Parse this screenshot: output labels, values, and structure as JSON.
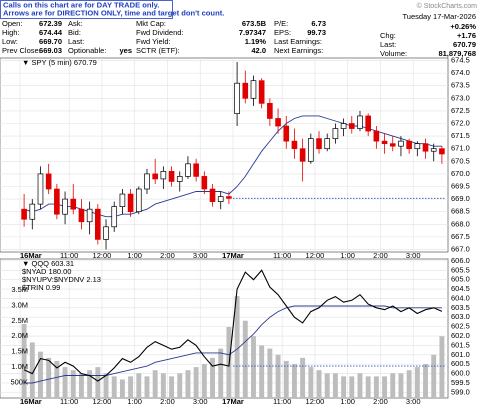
{
  "notice": [
    "Calls on this chart are for DAY TRADE only.",
    "Arrows are for DIRECTION ONLY, time and target don't count."
  ],
  "watermark": "© StockCharts.com",
  "quote": {
    "rows": [
      [
        {
          "label": "Open:",
          "value": "672.39"
        },
        {
          "label": "Ask:"
        },
        {
          "label": "Mkt Cap:",
          "value": "673.5B"
        },
        {
          "label": "P/E:",
          "value": "6.73"
        }
      ],
      [
        {
          "label": "High:",
          "value": "674.44"
        },
        {
          "label": "Bid:"
        },
        {
          "label": "Fwd Dividend:",
          "value": "7.97347"
        },
        {
          "label": "EPS:",
          "value": "99.73"
        }
      ],
      [
        {
          "label": "Low:",
          "value": "669.70"
        },
        {
          "label": "Last:"
        },
        {
          "label": "Fwd Yield:",
          "value": "1.19%"
        },
        {
          "label": "Last Earnings:"
        }
      ],
      [
        {
          "label": "Prev Close:",
          "value": "669.03"
        },
        {
          "label": "Optionable:",
          "value": "yes"
        },
        {
          "label": "SCTR (ETF):",
          "value": "42.0"
        },
        {
          "label": "Next Earnings:"
        }
      ]
    ],
    "date": "Tuesday 17-Mar-2026",
    "change_pct": "+0.26%",
    "change_color": "#1a9a1a",
    "stats": [
      {
        "label": "Chg:",
        "value": "+1.76"
      },
      {
        "label": "Last:",
        "value": "670.79"
      },
      {
        "label": "Volume:",
        "value": "81,879,768"
      }
    ]
  },
  "chart_data": [
    {
      "type": "candlestick",
      "legend": "▼ SPY (5 min) 670.79",
      "xlim": [
        0,
        52
      ],
      "xticks": [
        {
          "value": 0,
          "label": "16Mar"
        },
        {
          "value": 6,
          "label": "11:00"
        },
        {
          "value": 10,
          "label": "12:00"
        },
        {
          "value": 14,
          "label": "1:00"
        },
        {
          "value": 18,
          "label": "2:00"
        },
        {
          "value": 22,
          "label": "3:00"
        },
        {
          "value": 26,
          "label": "17Mar"
        },
        {
          "value": 32,
          "label": "11:00"
        },
        {
          "value": 36,
          "label": "12:00"
        },
        {
          "value": 40,
          "label": "1:00"
        },
        {
          "value": 44,
          "label": "2:00"
        },
        {
          "value": 48,
          "label": "3:00"
        }
      ],
      "ylim": [
        666.9,
        674.6
      ],
      "yticks": [
        674.5,
        {
          "value": 674,
          "label": "674.0"
        },
        673.5,
        {
          "value": 673,
          "label": "673.0"
        },
        672.5,
        {
          "value": 672,
          "label": "672.0"
        },
        671.5,
        {
          "value": 671,
          "label": "671.0"
        },
        670.5,
        {
          "value": 670,
          "label": "670.0"
        },
        669.5,
        {
          "value": 669,
          "label": "669.0"
        },
        668.5,
        {
          "value": 668,
          "label": "668.0"
        },
        667.5,
        {
          "value": 667,
          "label": "667.0"
        }
      ],
      "grid": true,
      "up_color": "#000000",
      "down_color": "#e00000",
      "ma_color": "#2b3990",
      "prev_color": "#3050c0",
      "open": [
        668.6,
        668.2,
        668.8,
        670.0,
        669.4,
        668.4,
        669.0,
        668.6,
        668.1,
        668.6,
        667.4,
        667.9,
        668.7,
        669.2,
        668.5,
        669.4,
        670.0,
        669.8,
        670.1,
        669.7,
        669.9,
        670.4,
        669.9,
        669.4,
        668.9,
        669.1,
        672.39,
        673.6,
        673.0,
        673.7,
        672.8,
        672.2,
        671.9,
        671.3,
        671.0,
        670.5,
        671.4,
        671.0,
        671.4,
        671.8,
        672.0,
        671.8,
        672.3,
        671.7,
        671.3,
        671.2,
        671.1,
        671.3,
        671.0,
        671.2,
        670.9,
        671.0
      ],
      "high": [
        669.2,
        669.0,
        670.3,
        670.4,
        669.6,
        669.3,
        669.6,
        669.0,
        668.9,
        668.8,
        668.2,
        668.9,
        669.4,
        669.4,
        669.5,
        670.2,
        670.6,
        670.3,
        670.3,
        670.1,
        670.7,
        670.6,
        670.1,
        669.6,
        669.3,
        669.3,
        674.44,
        674.1,
        673.9,
        673.8,
        673.0,
        672.6,
        672.3,
        671.8,
        671.4,
        671.6,
        671.7,
        671.6,
        672.0,
        672.2,
        672.3,
        672.5,
        672.4,
        671.9,
        671.6,
        671.5,
        671.5,
        671.4,
        671.3,
        671.4,
        671.2,
        671.1
      ],
      "low": [
        667.9,
        667.8,
        668.6,
        669.2,
        668.2,
        668.0,
        668.4,
        667.8,
        667.6,
        667.2,
        667.0,
        667.7,
        668.4,
        668.3,
        668.4,
        669.2,
        669.6,
        669.4,
        669.5,
        669.3,
        669.8,
        669.7,
        669.2,
        668.7,
        668.6,
        668.8,
        671.9,
        672.8,
        672.7,
        672.6,
        671.9,
        671.6,
        671.0,
        670.6,
        669.7,
        670.4,
        670.8,
        670.9,
        671.2,
        671.5,
        671.6,
        671.7,
        671.5,
        671.0,
        670.8,
        670.9,
        670.7,
        670.8,
        670.7,
        670.6,
        670.5,
        670.4
      ],
      "close": [
        668.2,
        668.8,
        670.0,
        669.4,
        668.4,
        669.0,
        668.6,
        668.1,
        668.6,
        667.4,
        667.9,
        668.7,
        669.2,
        668.5,
        669.4,
        670.0,
        669.8,
        670.1,
        669.7,
        669.9,
        670.4,
        669.9,
        669.4,
        668.9,
        669.1,
        669.03,
        673.6,
        673.0,
        673.7,
        672.8,
        672.2,
        671.9,
        671.3,
        671.0,
        670.5,
        671.4,
        671.0,
        671.4,
        671.8,
        672.0,
        671.8,
        672.3,
        671.7,
        671.3,
        671.2,
        671.1,
        671.3,
        671.0,
        671.2,
        670.9,
        671.0,
        670.79
      ],
      "ma": [
        668.6,
        668.5,
        668.6,
        668.8,
        668.8,
        668.7,
        668.7,
        668.6,
        668.5,
        668.4,
        668.3,
        668.3,
        668.4,
        668.4,
        668.5,
        668.6,
        668.8,
        668.9,
        669.0,
        669.1,
        669.2,
        669.3,
        669.3,
        669.3,
        669.3,
        669.2,
        669.5,
        669.9,
        670.4,
        670.9,
        671.3,
        671.7,
        672.0,
        672.2,
        672.3,
        672.3,
        672.3,
        672.2,
        672.1,
        672.0,
        671.9,
        671.9,
        671.8,
        671.7,
        671.6,
        671.5,
        671.4,
        671.3,
        671.2,
        671.2,
        671.1,
        671.1
      ],
      "prev_close": 669.03
    },
    {
      "type": "line",
      "legend": [
        "▼ QQQ 603.31",
        "$NYAD 180.00",
        "$NYUPV:$NYDNV 2.13",
        "$TRIN 0.99"
      ],
      "xlim": [
        0,
        52
      ],
      "xticks": [
        {
          "value": 0,
          "label": "16Mar"
        },
        {
          "value": 6,
          "label": "11:00"
        },
        {
          "value": 10,
          "label": "12:00"
        },
        {
          "value": 14,
          "label": "1:00"
        },
        {
          "value": 18,
          "label": "2:00"
        },
        {
          "value": 22,
          "label": "3:00"
        },
        {
          "value": 26,
          "label": "17Mar"
        },
        {
          "value": 32,
          "label": "11:00"
        },
        {
          "value": 36,
          "label": "12:00"
        },
        {
          "value": 40,
          "label": "1:00"
        },
        {
          "value": 44,
          "label": "2:00"
        },
        {
          "value": 48,
          "label": "3:00"
        }
      ],
      "ylim": [
        598.7,
        606.1
      ],
      "yticks": [
        {
          "value": 606,
          "label": "606.0"
        },
        605.5,
        {
          "value": 605,
          "label": "605.0"
        },
        604.5,
        {
          "value": 604,
          "label": "604.0"
        },
        603.5,
        {
          "value": 603,
          "label": "603.0"
        },
        602.5,
        {
          "value": 602,
          "label": "602.0"
        },
        601.5,
        {
          "value": 601,
          "label": "601.0"
        },
        600.5,
        {
          "value": 600,
          "label": "600.0"
        },
        599.5,
        {
          "value": 599,
          "label": "599.0"
        }
      ],
      "vlim": [
        0,
        4500000
      ],
      "vticks": [
        {
          "value": 500000,
          "label": "500K"
        },
        {
          "value": 1000000,
          "label": "1.0M"
        },
        {
          "value": 1500000,
          "label": "1.5M"
        },
        {
          "value": 2000000,
          "label": "2.0M"
        },
        {
          "value": 2500000,
          "label": "2.5M"
        },
        {
          "value": 3000000,
          "label": "3.0M"
        },
        {
          "value": 3500000,
          "label": "3.5M"
        }
      ],
      "grid": true,
      "color": "#000000",
      "ma_color": "#2b3990",
      "prev_color": "#3050c0",
      "volume_color": "#bdbdbd",
      "values": [
        600.2,
        600.0,
        600.8,
        600.7,
        600.3,
        600.6,
        600.4,
        600.0,
        599.9,
        599.6,
        599.9,
        600.3,
        600.8,
        600.6,
        600.9,
        601.4,
        601.7,
        601.5,
        601.3,
        601.4,
        601.8,
        601.5,
        600.9,
        600.4,
        600.5,
        600.4,
        604.5,
        605.4,
        605.0,
        605.5,
        604.6,
        604.2,
        603.6,
        603.0,
        602.7,
        603.3,
        603.5,
        603.9,
        604.1,
        603.8,
        603.9,
        604.2,
        603.7,
        603.5,
        603.4,
        603.6,
        603.3,
        603.5,
        603.2,
        603.4,
        603.5,
        603.31
      ],
      "ma": [
        599.5,
        599.5,
        599.6,
        599.7,
        599.8,
        599.9,
        599.9,
        599.9,
        599.9,
        599.9,
        599.9,
        600.0,
        600.1,
        600.2,
        600.3,
        600.4,
        600.6,
        600.7,
        600.8,
        600.9,
        601.0,
        601.1,
        601.1,
        601.1,
        601.1,
        601.0,
        601.3,
        601.7,
        602.1,
        602.6,
        603.0,
        603.3,
        603.5,
        603.6,
        603.6,
        603.6,
        603.6,
        603.6,
        603.6,
        603.6,
        603.6,
        603.6,
        603.6,
        603.6,
        603.6,
        603.5,
        603.5,
        603.5,
        603.5,
        603.5,
        603.5,
        603.5
      ],
      "volume": [
        2400000,
        1800000,
        1500000,
        1300000,
        1200000,
        1000000,
        900000,
        800000,
        900000,
        1000000,
        800000,
        700000,
        600000,
        700000,
        800000,
        700000,
        900000,
        800000,
        700000,
        800000,
        900000,
        1000000,
        1100000,
        1300000,
        1600000,
        2300000,
        3300000,
        2500000,
        2000000,
        1700000,
        1600000,
        1400000,
        1200000,
        1100000,
        1300000,
        1000000,
        900000,
        800000,
        800000,
        700000,
        700000,
        800000,
        700000,
        700000,
        700000,
        800000,
        800000,
        900000,
        1000000,
        1100000,
        1400000,
        2000000
      ],
      "prev_close": 600.4
    }
  ]
}
